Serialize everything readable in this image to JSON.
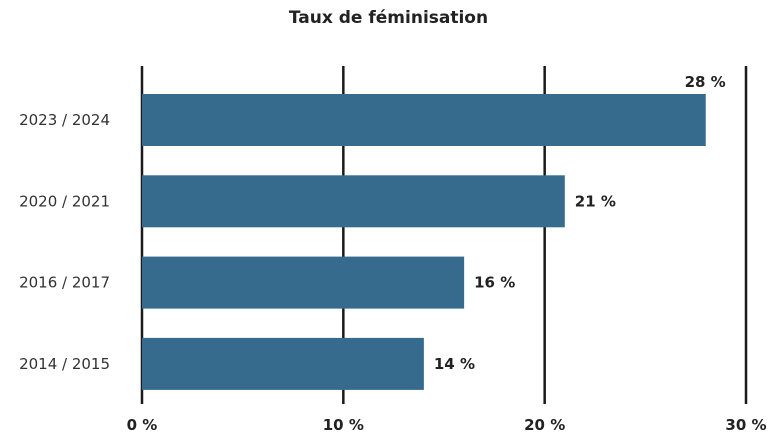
{
  "chart_data": {
    "type": "bar",
    "orientation": "horizontal",
    "title": "Taux de féminisation",
    "categories": [
      "2023 / 2024",
      "2020 / 2021",
      "2016 / 2017",
      "2014 / 2015"
    ],
    "values": [
      28,
      21,
      16,
      14
    ],
    "value_labels": [
      "28 %",
      "21 %",
      "16 %",
      "14 %"
    ],
    "xlim": [
      0,
      30
    ],
    "xticks": [
      0,
      10,
      20,
      30
    ],
    "xtick_labels": [
      "0 %",
      "10 %",
      "20 %",
      "30 %"
    ],
    "grid": true,
    "bar_color": "#376b8e",
    "grid_color": "#1a1a1a"
  }
}
